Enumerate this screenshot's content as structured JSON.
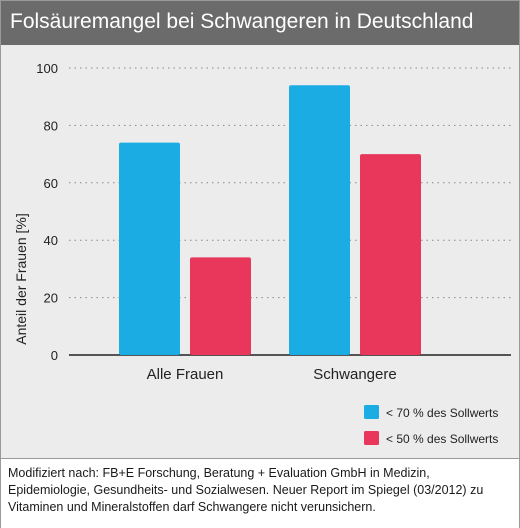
{
  "title": "Folsäuremangel bei Schwangeren in Deutschland",
  "footer": "Modifiziert nach: FB+E Forschung, Beratung + Evaluation GmbH in Medizin, Epidemiologie, Gesundheits- und Sozialwesen. Neuer Report im Spiegel (03/2012) zu Vitaminen und Mineralstoffen darf Schwangere nicht verunsichern.",
  "chart_data": {
    "type": "bar",
    "title": "Folsäuremangel bei Schwangeren in Deutschland",
    "xlabel": "",
    "ylabel": "Anteil der Frauen [%]",
    "ylim": [
      0,
      100
    ],
    "yticks": [
      "0",
      "20",
      "40",
      "60",
      "80",
      "100"
    ],
    "grid": true,
    "legend": "bottom-right",
    "categories": [
      "Alle Frauen",
      "Schwangere"
    ],
    "series": [
      {
        "name": "< 70 % des Sollwerts",
        "values": [
          74,
          94
        ],
        "color": "#1aace3"
      },
      {
        "name": "< 50 % des Sollwerts",
        "values": [
          34,
          70
        ],
        "color": "#e8375a"
      }
    ]
  }
}
